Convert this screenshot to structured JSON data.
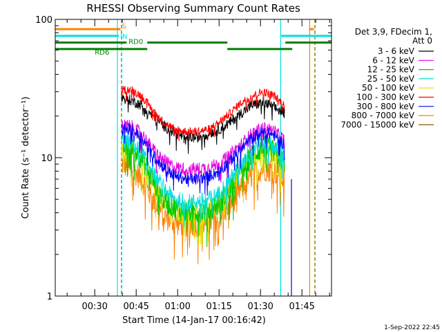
{
  "chart_data": {
    "type": "line",
    "title": "RHESSI Observing Summary Count Rates",
    "xlabel": "Start Time (14-Jan-17 00:16:42)",
    "ylabel": "Count Rate (s⁻¹ detector⁻¹)",
    "yscale": "log",
    "ylim": [
      1,
      100
    ],
    "xlim_min": [
      16.7,
      116.7
    ],
    "x_ticks": [
      {
        "min": 31,
        "label": "00:30"
      },
      {
        "min": 46,
        "label": "00:45"
      },
      {
        "min": 61,
        "label": "01:00"
      },
      {
        "min": 76,
        "label": "01:15"
      },
      {
        "min": 91,
        "label": "01:30"
      },
      {
        "min": 106,
        "label": "01:45"
      }
    ],
    "y_ticks": [
      {
        "value": 1,
        "label": "1"
      },
      {
        "value": 10,
        "label": "10"
      },
      {
        "value": 100,
        "label": "100"
      }
    ],
    "data_start_min": 40.7,
    "data_end_min": 99.7,
    "series": [
      {
        "name": "3 - 6 keV",
        "color": "#000000",
        "x": [
          41,
          44,
          48,
          52,
          56,
          60,
          64,
          68,
          72,
          76,
          80,
          84,
          88,
          92,
          96,
          99.5
        ],
        "y": [
          27,
          26,
          24,
          20,
          17,
          15,
          14,
          14,
          15,
          16,
          18,
          21,
          24,
          25,
          23,
          21
        ],
        "noise": 0.09
      },
      {
        "name": "6 - 12 keV",
        "color": "#e000e0",
        "x": [
          41,
          44,
          48,
          52,
          56,
          60,
          64,
          68,
          72,
          76,
          80,
          84,
          88,
          92,
          96,
          99.5
        ],
        "y": [
          17,
          17,
          15,
          11.5,
          9.5,
          8.5,
          8.3,
          8.3,
          8.5,
          9,
          10.5,
          12.5,
          15,
          16.5,
          15.5,
          13.5
        ],
        "noise": 0.11
      },
      {
        "name": "12 - 25 keV",
        "color": "#00c800",
        "x": [
          41,
          44,
          48,
          52,
          56,
          60,
          64,
          68,
          72,
          76,
          80,
          84,
          88,
          92,
          96,
          99.5
        ],
        "y": [
          12,
          12,
          10,
          7,
          5,
          4.3,
          4.1,
          4.1,
          4.2,
          4.6,
          6,
          8,
          10.5,
          12,
          11,
          9.5
        ],
        "noise": 0.2
      },
      {
        "name": "25 - 50 keV",
        "color": "#00e0e0",
        "x": [
          41,
          44,
          48,
          52,
          56,
          60,
          64,
          68,
          72,
          76,
          80,
          84,
          88,
          92,
          96,
          99.5
        ],
        "y": [
          13,
          13,
          11,
          8,
          6,
          5,
          4.8,
          4.8,
          5,
          5.5,
          7,
          9,
          11.5,
          13,
          12,
          10.5
        ],
        "noise": 0.14
      },
      {
        "name": "50 - 100 keV",
        "color": "#e0e000",
        "x": [
          41,
          44,
          48,
          52,
          56,
          60,
          64,
          68,
          72,
          76,
          80,
          84,
          88,
          92,
          96,
          99.5
        ],
        "y": [
          11,
          11,
          9.5,
          6.5,
          4.8,
          4.1,
          3.9,
          3.9,
          4.1,
          4.5,
          6,
          8,
          10,
          11.5,
          11,
          9
        ],
        "noise": 0.18
      },
      {
        "name": "100 - 300 keV",
        "color": "#ff0000",
        "x": [
          41,
          44,
          48,
          52,
          56,
          60,
          64,
          68,
          72,
          76,
          80,
          84,
          88,
          92,
          96,
          99.5
        ],
        "y": [
          31,
          31,
          28,
          22,
          18,
          16,
          15.5,
          15.5,
          16,
          18,
          21,
          25,
          28,
          30,
          28,
          24
        ],
        "noise": 0.07
      },
      {
        "name": "300 - 800 keV",
        "color": "#0000ff",
        "x": [
          41,
          44,
          48,
          52,
          56,
          60,
          64,
          68,
          72,
          76,
          80,
          84,
          88,
          92,
          96,
          99.5
        ],
        "y": [
          16,
          16,
          14,
          10.5,
          8.5,
          7.4,
          7,
          7,
          7.3,
          8,
          9.5,
          11.5,
          14,
          15.5,
          14.5,
          12.5
        ],
        "noise": 0.1
      },
      {
        "name": "800 - 7000 keV",
        "color": "#ff8000",
        "x": [
          41,
          44,
          48,
          52,
          56,
          60,
          64,
          68,
          72,
          76,
          80,
          84,
          88,
          92,
          96,
          99.5
        ],
        "y": [
          9,
          8.5,
          7,
          5,
          3.8,
          3.4,
          3.3,
          3.3,
          3.4,
          3.7,
          4.6,
          6,
          7.5,
          8.5,
          8,
          7
        ],
        "noise": 0.22
      },
      {
        "name": "7000 - 15000 keV",
        "color": "#8b5a00",
        "x": [],
        "y": [],
        "noise": 0
      }
    ],
    "legend": {
      "position": "right",
      "header": [
        "Det 3,9, FDecim 1,",
        "Att 0"
      ]
    },
    "flags": [
      {
        "label": "S",
        "color": "#ff8000",
        "level": 85,
        "segments": [
          [
            16.7,
            40.3
          ],
          [
            108.6,
            110.3
          ]
        ]
      },
      {
        "label": "IN",
        "color": "#00e0e0",
        "level": 76,
        "segments": [
          [
            16.7,
            39.7
          ],
          [
            98.5,
            116.7
          ]
        ]
      },
      {
        "label": "RD0",
        "color": "#008000",
        "level": 68,
        "segments": [
          [
            16.7,
            42.5
          ],
          [
            50,
            79
          ],
          [
            100,
            116.7
          ]
        ]
      },
      {
        "label": "RD6",
        "color": "#008000",
        "level": 61,
        "segments": [
          [
            16.7,
            50
          ],
          [
            79,
            102.5
          ]
        ]
      }
    ],
    "vlines": [
      {
        "min": 39.2,
        "color": "#00e0e0",
        "style": "solid"
      },
      {
        "min": 40.6,
        "color": "#ff8000",
        "style": "dashed"
      },
      {
        "min": 40.8,
        "color": "#00e0e0",
        "style": "dashed"
      },
      {
        "min": 98.3,
        "color": "#00e0e0",
        "style": "solid"
      },
      {
        "min": 108.8,
        "color": "#ff8000",
        "style": "solid"
      },
      {
        "min": 110.6,
        "color": "#ff8000",
        "style": "dashed"
      },
      {
        "min": 110.8,
        "color": "#00e0e0",
        "style": "dashed"
      }
    ],
    "drop_line": {
      "min": 102.2,
      "color": "#0000ff",
      "from": 7,
      "to": 1
    }
  },
  "footer": {
    "date": "1-Sep-2022 22:45"
  }
}
